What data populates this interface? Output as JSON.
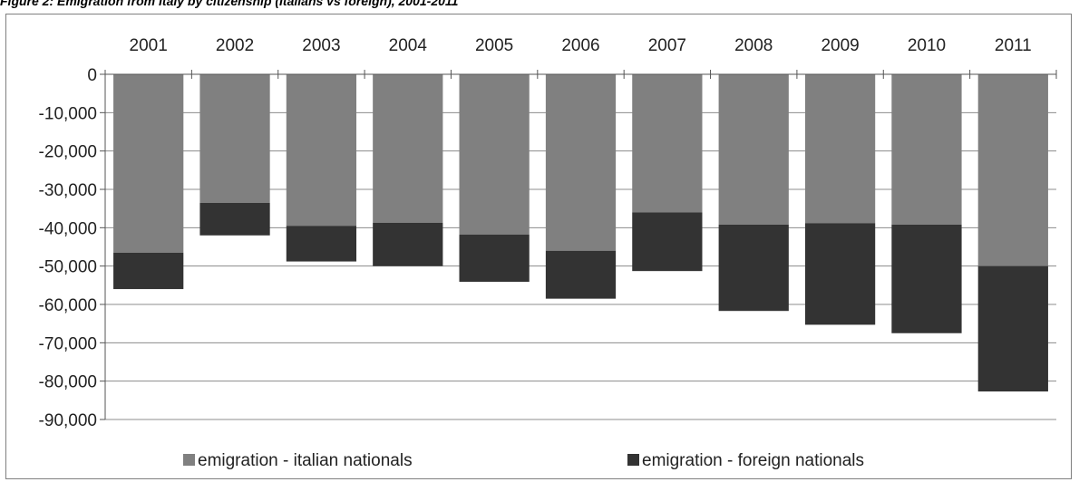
{
  "caption": "Figure 2: Emigration from Italy by citizenship (Italians vs foreign), 2001-2011",
  "chart_data": {
    "type": "bar",
    "stacked": true,
    "categories": [
      "2001",
      "2002",
      "2003",
      "2004",
      "2005",
      "2006",
      "2007",
      "2008",
      "2009",
      "2010",
      "2011"
    ],
    "series": [
      {
        "name": "emigration - italian nationals",
        "color": "#808080",
        "values": [
          -46500,
          -33500,
          -39500,
          -38700,
          -41800,
          -46000,
          -36000,
          -39200,
          -38800,
          -39200,
          -50000
        ]
      },
      {
        "name": "emigration - foreign nationals",
        "color": "#333333",
        "values": [
          -9500,
          -8500,
          -9300,
          -11300,
          -12300,
          -12500,
          -15300,
          -22500,
          -26500,
          -28300,
          -32700
        ]
      }
    ],
    "ylim": [
      -90000,
      0
    ],
    "yticks": [
      0,
      -10000,
      -20000,
      -30000,
      -40000,
      -50000,
      -60000,
      -70000,
      -80000,
      -90000
    ],
    "ytick_labels": [
      "0",
      "-10,000",
      "-20,000",
      "-30,000",
      "-40,000",
      "-50,000",
      "-60,000",
      "-70,000",
      "-80,000",
      "-90,000"
    ],
    "x_axis_position": "top",
    "grid": true,
    "legend": "bottom"
  }
}
